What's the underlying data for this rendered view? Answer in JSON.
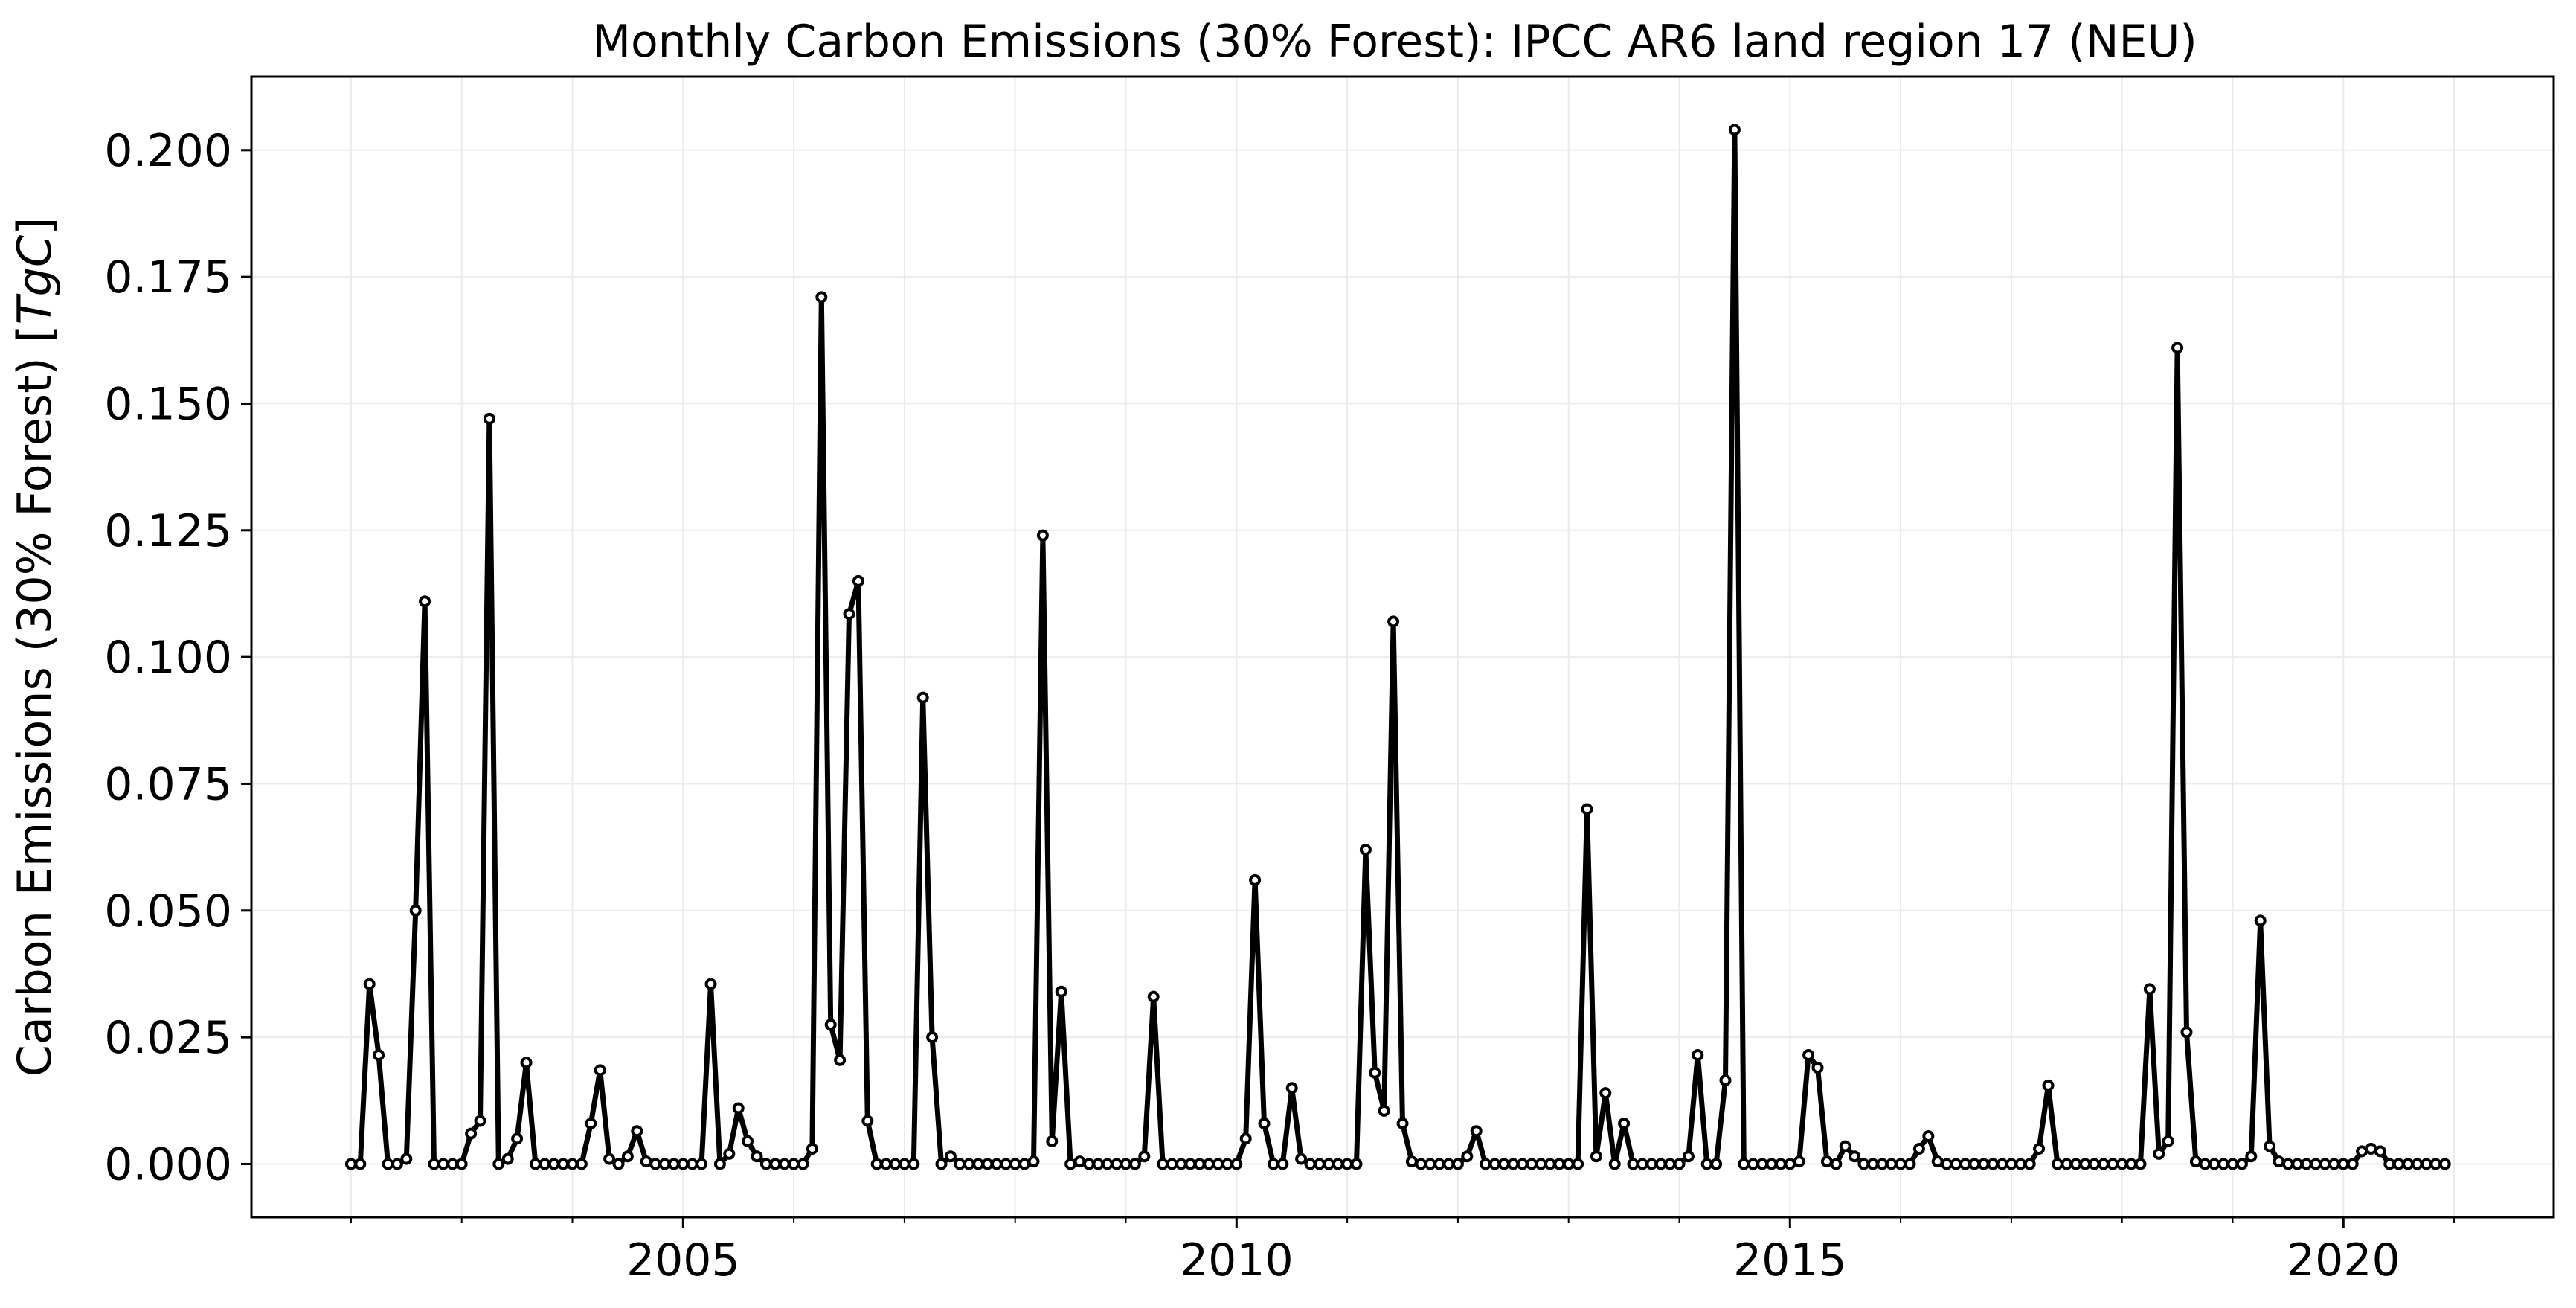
{
  "chart_data": {
    "type": "line",
    "title": "Monthly Carbon Emissions (30% Forest): IPCC AR6 land region 17 (NEU)",
    "ylabel_text": "Carbon Emissions (30% Forest) [",
    "ylabel_unit": "TgC",
    "ylabel_close": "]",
    "xlabel": "",
    "x_ticks": [
      2005,
      2010,
      2015,
      2020
    ],
    "x_tick_labels": [
      "2005",
      "2010",
      "2015",
      "2020"
    ],
    "y_ticks": [
      0,
      0.025,
      0.05,
      0.075,
      0.1,
      0.125,
      0.15,
      0.175,
      0.2
    ],
    "y_tick_labels": [
      "0.000",
      "0.025",
      "0.050",
      "0.075",
      "0.100",
      "0.125",
      "0.150",
      "0.175",
      "0.200"
    ],
    "xlim": [
      2001.1,
      2021.9
    ],
    "ylim": [
      -0.0105,
      0.2145
    ],
    "grid": true,
    "color": "#000000",
    "series": [
      {
        "start": "2002-01",
        "values": [
          0,
          0,
          0.0355,
          0.0215,
          0,
          0,
          0.001,
          0.05,
          0.111,
          0,
          0,
          0,
          0,
          0.006,
          0.0085,
          0.147,
          0,
          0.001,
          0.005,
          0.02,
          0,
          0,
          0,
          0,
          0,
          0,
          0.008,
          0.0185,
          0.001,
          0,
          0.0015,
          0.0065,
          0.0005,
          0,
          0,
          0,
          0,
          0,
          0,
          0.0355,
          0,
          0.002,
          0.011,
          0.0045,
          0.0015,
          0,
          0,
          0,
          0,
          0,
          0.003,
          0.171,
          0.0275,
          0.0205,
          0.1085,
          0.115,
          0.0085,
          0,
          0,
          0,
          0,
          0,
          0.092,
          0.025,
          0,
          0.0015,
          0,
          0,
          0,
          0,
          0,
          0,
          0,
          0,
          0.0005,
          0.124,
          0.0045,
          0.034,
          0,
          0.0005,
          0,
          0,
          0,
          0,
          0,
          0,
          0.0015,
          0.033,
          0,
          0,
          0,
          0,
          0,
          0,
          0,
          0,
          0,
          0.005,
          0.056,
          0.008,
          0,
          0,
          0.015,
          0.001,
          0,
          0,
          0,
          0,
          0,
          0,
          0.062,
          0.018,
          0.0105,
          0.107,
          0.008,
          0.0005,
          0,
          0,
          0,
          0,
          0,
          0.0015,
          0.0065,
          0,
          0,
          0,
          0,
          0,
          0,
          0,
          0,
          0,
          0,
          0,
          0.07,
          0.0015,
          0.014,
          0,
          0.008,
          0,
          0,
          0,
          0,
          0,
          0,
          0.0015,
          0.0215,
          0,
          0,
          0.0165,
          0.204,
          0,
          0,
          0,
          0,
          0,
          0,
          0.0005,
          0.0215,
          0.019,
          0.0005,
          0,
          0.0035,
          0.0015,
          0,
          0,
          0,
          0,
          0,
          0,
          0.003,
          0.0055,
          0.0005,
          0,
          0,
          0,
          0,
          0,
          0,
          0,
          0,
          0,
          0,
          0.003,
          0.0155,
          0,
          0,
          0,
          0,
          0,
          0,
          0,
          0,
          0,
          0,
          0.0345,
          0.002,
          0.0045,
          0.161,
          0.026,
          0.0005,
          0,
          0,
          0,
          0,
          0,
          0.0015,
          0.048,
          0.0035,
          0.0005,
          0,
          0,
          0,
          0,
          0,
          0,
          0,
          0,
          0.0025,
          0.003,
          0.0025,
          0,
          0,
          0,
          0,
          0,
          0,
          0
        ]
      }
    ]
  }
}
